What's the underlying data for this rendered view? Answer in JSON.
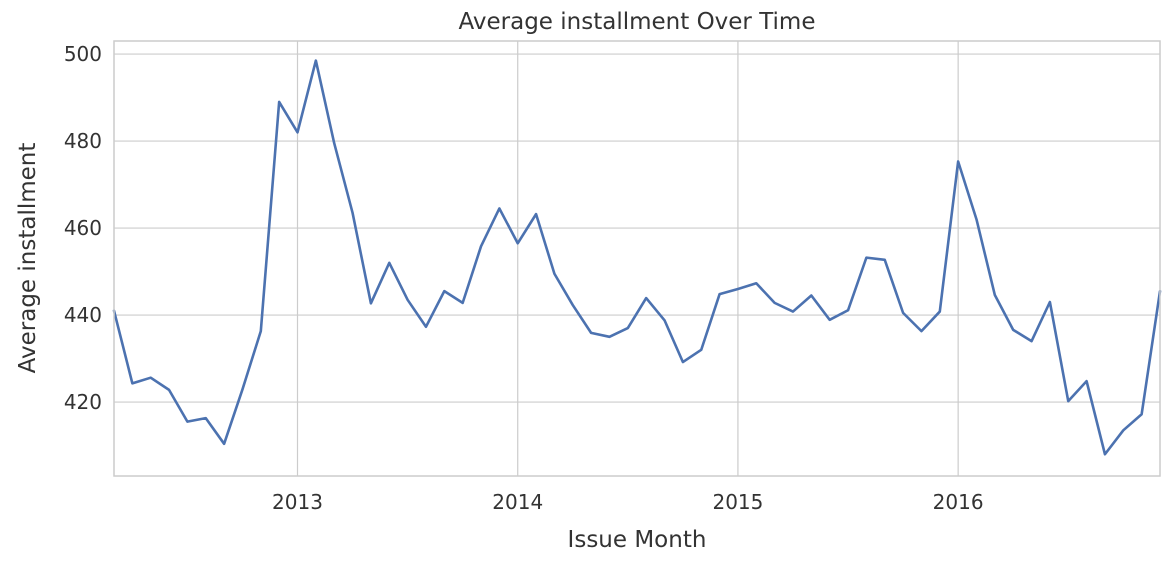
{
  "chart_data": {
    "type": "line",
    "title": "Average installment Over Time",
    "xlabel": "Issue Month",
    "ylabel": "Average installment",
    "grid": true,
    "x_ticks": [
      "2013",
      "2014",
      "2015",
      "2016"
    ],
    "x_tick_dates": [
      "2013-01",
      "2014-01",
      "2015-01",
      "2016-01"
    ],
    "y_ticks": [
      420,
      440,
      460,
      480,
      500
    ],
    "xlim": [
      "2012-03",
      "2016-12"
    ],
    "ylim": [
      403,
      503
    ],
    "series": [
      {
        "color": "#4c72b0",
        "x": [
          "2012-03",
          "2012-04",
          "2012-05",
          "2012-06",
          "2012-07",
          "2012-08",
          "2012-09",
          "2012-10",
          "2012-11",
          "2012-12",
          "2013-01",
          "2013-02",
          "2013-03",
          "2013-04",
          "2013-05",
          "2013-06",
          "2013-07",
          "2013-08",
          "2013-09",
          "2013-10",
          "2013-11",
          "2013-12",
          "2014-01",
          "2014-02",
          "2014-03",
          "2014-04",
          "2014-05",
          "2014-06",
          "2014-07",
          "2014-08",
          "2014-09",
          "2014-10",
          "2014-11",
          "2014-12",
          "2015-01",
          "2015-02",
          "2015-03",
          "2015-04",
          "2015-05",
          "2015-06",
          "2015-07",
          "2015-08",
          "2015-09",
          "2015-10",
          "2015-11",
          "2015-12",
          "2016-01",
          "2016-02",
          "2016-03",
          "2016-04",
          "2016-05",
          "2016-06",
          "2016-07",
          "2016-08",
          "2016-09",
          "2016-10",
          "2016-11",
          "2016-12"
        ],
        "values": [
          441.0,
          424.3,
          425.6,
          422.8,
          415.5,
          416.3,
          410.4,
          422.9,
          436.3,
          489.0,
          482.0,
          498.5,
          479.5,
          463.5,
          442.7,
          452.0,
          443.5,
          437.3,
          445.5,
          442.8,
          455.8,
          464.5,
          456.5,
          463.2,
          449.5,
          442.3,
          435.9,
          435.0,
          437.0,
          443.9,
          438.8,
          429.2,
          432.0,
          444.8,
          446.0,
          447.3,
          442.8,
          440.8,
          444.5,
          438.9,
          441.1,
          453.2,
          452.7,
          440.5,
          436.3,
          440.8,
          475.3,
          462.0,
          444.6,
          436.6,
          434.0,
          443.0,
          420.2,
          424.8,
          408.0,
          413.5,
          417.2,
          445.5
        ]
      }
    ]
  }
}
